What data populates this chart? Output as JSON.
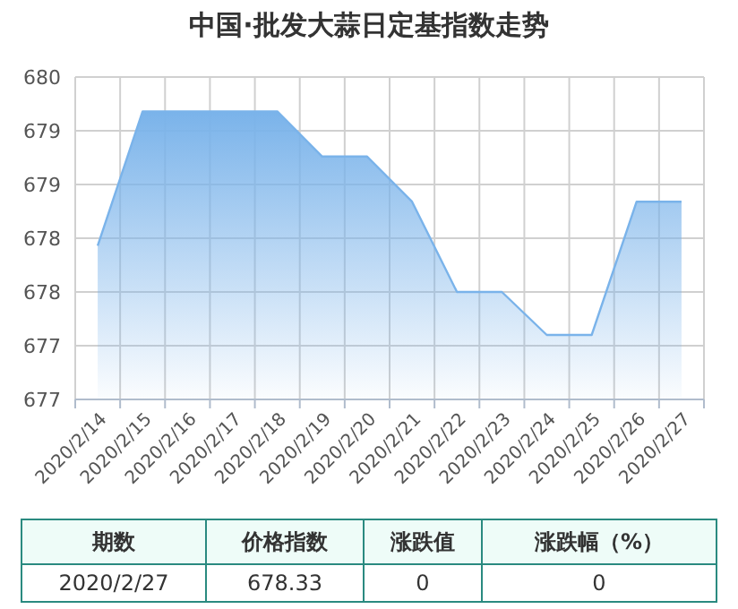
{
  "chart_data": {
    "type": "area",
    "title": "中国·批发大蒜日定基指数走势",
    "categories": [
      "2020/2/14",
      "2020/2/15",
      "2020/2/16",
      "2020/2/17",
      "2020/2/18",
      "2020/2/19",
      "2020/2/20",
      "2020/2/21",
      "2020/2/22",
      "2020/2/23",
      "2020/2/24",
      "2020/2/25",
      "2020/2/26",
      "2020/2/27"
    ],
    "series": [
      {
        "color": "#7ab3ea",
        "values": [
          678.43,
          679.68,
          679.68,
          679.68,
          679.68,
          679.26,
          679.26,
          678.84,
          678.0,
          678.0,
          677.6,
          677.6,
          678.84,
          678.84
        ]
      }
    ],
    "ylim": [
      677,
      680
    ],
    "yticks": [
      677,
      {
        "value": 677.5,
        "label": "677"
      },
      678,
      {
        "value": 678.5,
        "label": "678"
      },
      679,
      {
        "value": 679.5,
        "label": "679"
      },
      680
    ],
    "grid": true,
    "annotations": [
      "期数",
      "价格指数",
      "涨跌值",
      "涨跌幅（%）",
      "2020/2/27",
      "678.33",
      "0",
      "0"
    ]
  }
}
